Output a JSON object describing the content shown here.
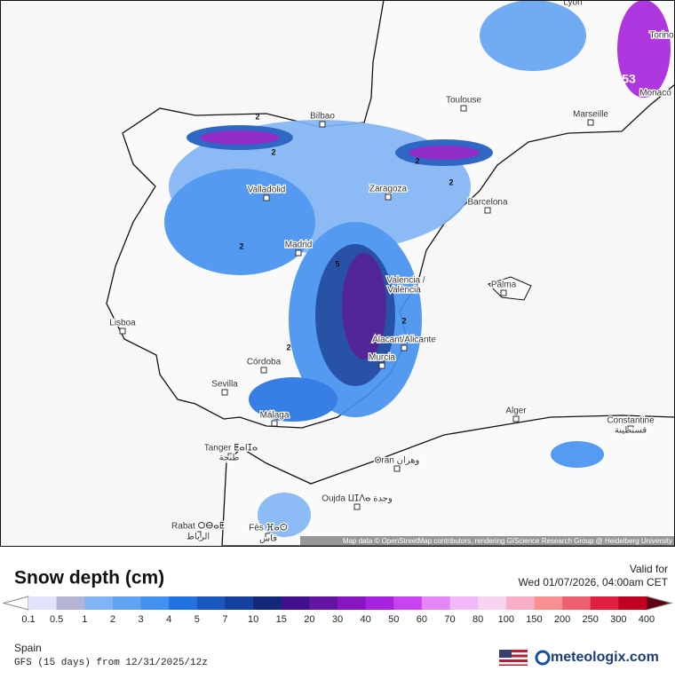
{
  "map": {
    "cities": [
      "Lyon",
      "Torino",
      "Toulouse",
      "Bilbao",
      "Marseille",
      "Monaco",
      "Zaragoza",
      "Valladolid",
      "Barcelona",
      "Madrid",
      "Valencia /",
      "València",
      "Palma",
      "Lisboa",
      "Alacant/Alicante",
      "Murcia",
      "Córdoba",
      "Sevilla",
      "Málaga",
      "Alger",
      "Constantine",
      "قسنطينة",
      "Tanger ⵟⴰⵏⵊⴰ",
      "طنجة",
      "Oran وهران",
      "Oujda ⵡⵊⴷⴰ وجدة",
      "Rabat ⵔⴱⴰⵟ",
      "الرباط",
      "Fès ⴼⴰⵙ",
      "فاس"
    ],
    "contour_labels": [
      "53",
      "2",
      "2",
      "2",
      "5",
      "2",
      "2",
      "2",
      "2"
    ],
    "attribution": "Map data © OpenStreetMap contributors, rendering GIScience Research Group @ Heidelberg University"
  },
  "legend": {
    "title": "Snow depth (cm)",
    "labels": [
      "0.1",
      "0.5",
      "1",
      "2",
      "3",
      "4",
      "5",
      "7",
      "10",
      "15",
      "20",
      "30",
      "40",
      "50",
      "60",
      "70",
      "80",
      "100",
      "150",
      "200",
      "250",
      "300",
      "400"
    ],
    "colors": [
      "#e2e2fa",
      "#b4b4d4",
      "#80b4f4",
      "#62a2f2",
      "#4290f0",
      "#2272e2",
      "#1a58c0",
      "#12409e",
      "#122878",
      "#42108e",
      "#6414a2",
      "#8616c2",
      "#a622de",
      "#c844f0",
      "#e488f8",
      "#f2b8f8",
      "#f8d4f0",
      "#f8b0c8",
      "#f89090",
      "#f06070",
      "#e02040",
      "#c00020"
    ],
    "low_color": "#ffffff",
    "high_color": "#600010"
  },
  "footer": {
    "valid_label": "Valid for",
    "valid_time": "Wed 01/07/2026, 04:00am CET",
    "region": "Spain",
    "model": "GFS (15 days) from  12/31/2025/12z",
    "brand": "meteologix.com"
  }
}
